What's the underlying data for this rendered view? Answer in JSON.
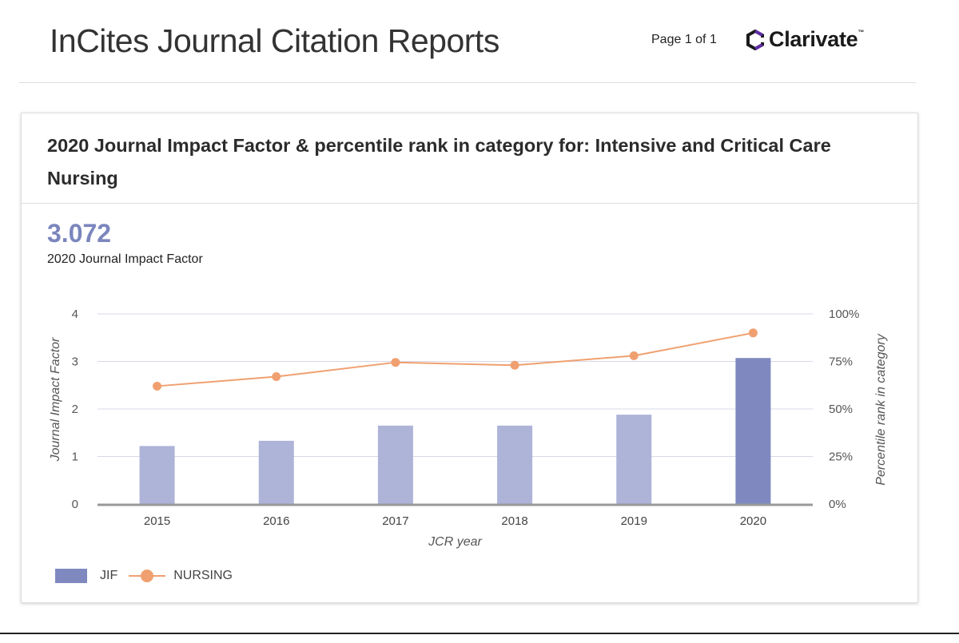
{
  "header": {
    "title": "InCites Journal Citation Reports",
    "page_indicator": "Page 1 of 1",
    "logo_text": "Clarivate",
    "logo_tm": "™"
  },
  "card": {
    "title": "2020 Journal Impact Factor & percentile rank in category for: Intensive and Critical Care Nursing",
    "metric_value": "3.072",
    "metric_label": "2020 Journal Impact Factor"
  },
  "colors": {
    "bar": "#aeb3d8",
    "bar_highlight": "#7f89c0",
    "line": "#f0a070",
    "grid": "#d8d8e8",
    "axis": "#999999"
  },
  "chart_data": {
    "type": "bar",
    "categories": [
      "2015",
      "2016",
      "2017",
      "2018",
      "2019",
      "2020"
    ],
    "series": [
      {
        "name": "JIF",
        "type": "bar",
        "axis": "left",
        "values": [
          1.22,
          1.33,
          1.65,
          1.65,
          1.88,
          3.072
        ]
      },
      {
        "name": "NURSING",
        "type": "line",
        "axis": "right",
        "values": [
          62,
          67,
          74.5,
          73,
          78,
          90
        ]
      }
    ],
    "xlabel": "JCR year",
    "ylabel": "Journal Impact Factor",
    "ylabel_right": "Percentile rank in category",
    "ylim": [
      0,
      4
    ],
    "yticks": [
      "0",
      "1",
      "2",
      "3",
      "4"
    ],
    "ylim_right": [
      0,
      100
    ],
    "yticks_right": [
      "0%",
      "25%",
      "50%",
      "75%",
      "100%"
    ],
    "highlight_category": "2020",
    "legend": [
      "JIF",
      "NURSING"
    ]
  }
}
